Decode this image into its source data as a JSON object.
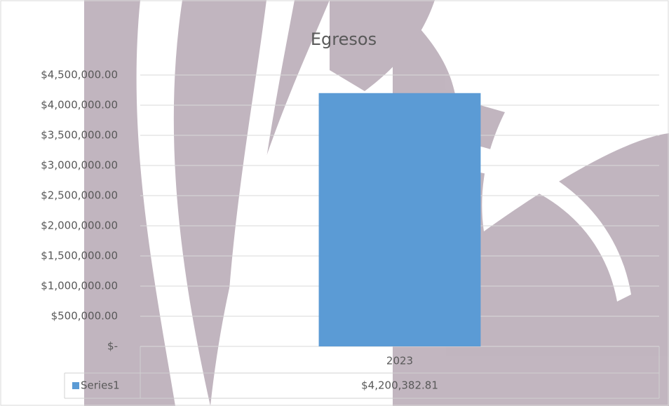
{
  "chart_data": {
    "type": "bar",
    "title": "Egresos",
    "categories": [
      "2023"
    ],
    "series": [
      {
        "name": "Series1",
        "color": "#5b9bd5",
        "values": [
          4200382.81
        ],
        "value_labels": [
          "$4,200,382.81"
        ]
      }
    ],
    "ylim": [
      0,
      4500000
    ],
    "yticks": [
      {
        "value": 0,
        "label": "$-"
      },
      {
        "value": 500000,
        "label": "$500,000.00"
      },
      {
        "value": 1000000,
        "label": "$1,000,000.00"
      },
      {
        "value": 1500000,
        "label": "$1,500,000.00"
      },
      {
        "value": 2000000,
        "label": "$2,000,000.00"
      },
      {
        "value": 2500000,
        "label": "$2,500,000.00"
      },
      {
        "value": 3000000,
        "label": "$3,000,000.00"
      },
      {
        "value": 3500000,
        "label": "$3,500,000.00"
      },
      {
        "value": 4000000,
        "label": "$4,000,000.00"
      },
      {
        "value": 4500000,
        "label": "$4,500,000.00"
      }
    ],
    "grid": true
  }
}
